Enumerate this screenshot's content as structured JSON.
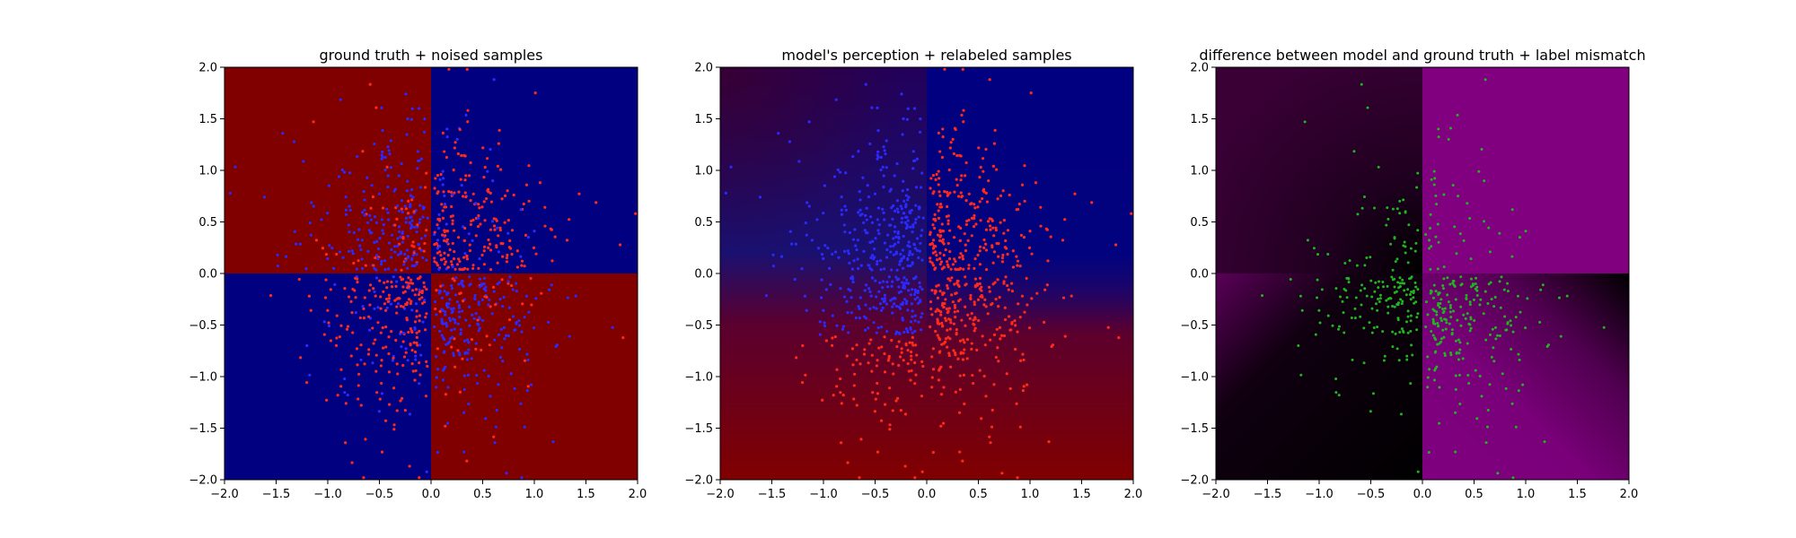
{
  "chart_data": [
    {
      "type": "scatter",
      "title": "ground truth + noised samples",
      "xlabel": "",
      "ylabel": "",
      "xlim": [
        -2.0,
        2.0
      ],
      "ylim": [
        -2.0,
        2.0
      ],
      "x_ticks": [
        "−2.0",
        "−1.5",
        "−1.0",
        "−0.5",
        "0.0",
        "0.5",
        "1.0",
        "1.5",
        "2.0"
      ],
      "y_ticks": [
        "2.0",
        "1.5",
        "1.0",
        "0.5",
        "0.0",
        "−0.5",
        "−1.0",
        "−1.5",
        "−2.0"
      ],
      "grid": false,
      "background_regions": [
        {
          "x": [
            -2.0,
            0.0
          ],
          "y": [
            0.0,
            2.0
          ],
          "color": "#800000"
        },
        {
          "x": [
            0.0,
            2.0
          ],
          "y": [
            0.0,
            2.0
          ],
          "color": "#000080"
        },
        {
          "x": [
            -2.0,
            0.0
          ],
          "y": [
            -2.0,
            0.0
          ],
          "color": "#000080"
        },
        {
          "x": [
            0.0,
            2.0
          ],
          "y": [
            -2.0,
            0.0
          ],
          "color": "#800000"
        }
      ],
      "point_colors": {
        "red": "#ff2a1a",
        "blue": "#2a2aff"
      },
      "samples": {
        "count_per_quadrant": 250,
        "description_of_labels": "points mostly colored opposite to their quadrant region"
      }
    },
    {
      "type": "scatter",
      "title": "model's perception + relabeled samples",
      "xlabel": "",
      "ylabel": "",
      "xlim": [
        -2.0,
        2.0
      ],
      "ylim": [
        -2.0,
        2.0
      ],
      "x_ticks": [
        "−2.0",
        "−1.5",
        "−1.0",
        "−0.5",
        "0.0",
        "0.5",
        "1.0",
        "1.5",
        "2.0"
      ],
      "y_ticks": [
        "2.0",
        "1.5",
        "1.0",
        "0.5",
        "0.0",
        "−0.5",
        "−1.0",
        "−1.5",
        "−2.0"
      ],
      "grid": false,
      "background_gradient": {
        "top_left": "#3a0030",
        "top_right": "#000080",
        "bottom_left": "#700010",
        "bottom_right": "#800000"
      },
      "point_colors": {
        "red": "#ff2a1a",
        "blue": "#2a2aff"
      }
    },
    {
      "type": "scatter",
      "title": "difference between model and ground truth + label mismatch",
      "xlabel": "",
      "ylabel": "",
      "xlim": [
        -2.0,
        2.0
      ],
      "ylim": [
        -2.0,
        2.0
      ],
      "x_ticks": [
        "−2.0",
        "−1.5",
        "−1.0",
        "−0.5",
        "0.0",
        "0.5",
        "1.0",
        "1.5",
        "2.0"
      ],
      "y_ticks": [
        "2.0",
        "1.5",
        "1.0",
        "0.5",
        "0.0",
        "−0.5",
        "−1.0",
        "−1.5",
        "−2.0"
      ],
      "grid": false,
      "background_regions": [
        {
          "x": [
            -2.0,
            0.0
          ],
          "y": [
            0.0,
            2.0
          ],
          "color": "#2a0026"
        },
        {
          "x": [
            0.0,
            2.0
          ],
          "y": [
            0.0,
            2.0
          ],
          "color": "#800080"
        },
        {
          "x": [
            -2.0,
            0.0
          ],
          "y": [
            -2.0,
            0.0
          ],
          "color": "#000000"
        },
        {
          "x": [
            0.0,
            2.0
          ],
          "y": [
            -2.0,
            0.0
          ],
          "color": "#7a007a"
        }
      ],
      "point_colors": {
        "mismatch": "#1fb51f"
      }
    }
  ]
}
